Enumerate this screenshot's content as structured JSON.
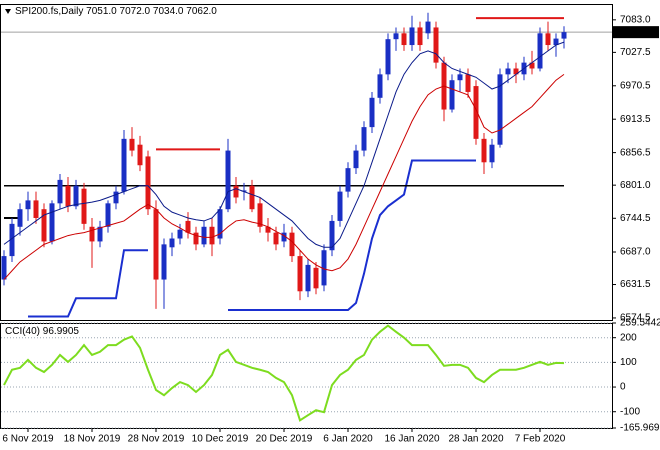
{
  "chart_data": {
    "type": "candlestick",
    "title": "SPI200.fs,Daily",
    "last_ohlc": [
      {
        "value": 7051,
        "label": "7051.0"
      },
      {
        "value": 7072,
        "label": "7072.0"
      },
      {
        "value": 7034,
        "label": "7034.0"
      },
      {
        "value": 7062,
        "label": "7062.0"
      }
    ],
    "categories": [
      null,
      null,
      null,
      "6 Nov 2019",
      null,
      null,
      null,
      null,
      null,
      null,
      null,
      "18 Nov 2019",
      null,
      null,
      null,
      null,
      null,
      null,
      null,
      "28 Nov 2019",
      null,
      null,
      null,
      null,
      null,
      null,
      null,
      "10 Dec 2019",
      null,
      null,
      null,
      null,
      null,
      null,
      null,
      "20 Dec 2019",
      null,
      null,
      null,
      null,
      null,
      null,
      null,
      "6 Jan 2020",
      null,
      null,
      null,
      null,
      null,
      null,
      null,
      "16 Jan 2020",
      null,
      null,
      null,
      null,
      null,
      null,
      null,
      "28 Jan 2020",
      null,
      null,
      null,
      null,
      null,
      null,
      null,
      "7 Feb 2020",
      null,
      null,
      null
    ],
    "open": [
      6640,
      6680,
      6730,
      6760,
      6775,
      6760,
      6705,
      6770,
      6800,
      6765,
      6795,
      6730,
      6705,
      6730,
      6770,
      6790,
      6880,
      6870,
      6850,
      6760,
      6640,
      6695,
      6710,
      6740,
      6720,
      6700,
      6730,
      6710,
      6760,
      6800,
      6790,
      6800,
      6770,
      6730,
      6720,
      6705,
      6720,
      6680,
      6620,
      6660,
      6630,
      6690,
      6740,
      6790,
      6830,
      6860,
      6900,
      6950,
      6990,
      7050,
      7060,
      7040,
      7070,
      7060,
      7070,
      7010,
      6930,
      6980,
      6990,
      6970,
      6880,
      6840,
      6870,
      6990,
      7000,
      6990,
      7010,
      7000,
      7060,
      7040,
      7051
    ],
    "high": [
      6690,
      6745,
      6770,
      6790,
      6790,
      6770,
      6775,
      6820,
      6815,
      6810,
      6805,
      6745,
      6740,
      6775,
      6800,
      6895,
      6900,
      6885,
      6860,
      6775,
      6710,
      6720,
      6735,
      6755,
      6730,
      6740,
      6745,
      6765,
      6880,
      6815,
      6805,
      6810,
      6780,
      6745,
      6730,
      6735,
      6730,
      6690,
      6675,
      6670,
      6700,
      6750,
      6800,
      6840,
      6870,
      6910,
      6960,
      7000,
      7060,
      7070,
      7070,
      7090,
      7080,
      7095,
      7080,
      7020,
      6990,
      7000,
      7000,
      6980,
      6890,
      6880,
      7000,
      7010,
      7010,
      7020,
      7030,
      7070,
      7080,
      7060,
      7072
    ],
    "low": [
      6630,
      6670,
      6715,
      6740,
      6735,
      6695,
      6700,
      6760,
      6755,
      6760,
      6725,
      6660,
      6695,
      6720,
      6760,
      6785,
      6850,
      6825,
      6750,
      6590,
      6590,
      6680,
      6700,
      6710,
      6690,
      6695,
      6680,
      6700,
      6755,
      6770,
      6775,
      6755,
      6720,
      6705,
      6690,
      6695,
      6670,
      6605,
      6610,
      6615,
      6620,
      6680,
      6730,
      6780,
      6820,
      6850,
      6890,
      6940,
      6980,
      7030,
      7030,
      7030,
      7030,
      7050,
      7000,
      6910,
      6925,
      6960,
      6950,
      6870,
      6820,
      6830,
      6865,
      6975,
      6975,
      6980,
      6990,
      6995,
      7030,
      7020,
      7034
    ],
    "close": [
      6680,
      6735,
      6760,
      6775,
      6745,
      6705,
      6770,
      6810,
      6765,
      6800,
      6735,
      6705,
      6730,
      6770,
      6790,
      6880,
      6860,
      6835,
      6760,
      6640,
      6700,
      6710,
      6725,
      6720,
      6700,
      6730,
      6700,
      6760,
      6860,
      6780,
      6792,
      6760,
      6730,
      6720,
      6700,
      6720,
      6680,
      6620,
      6665,
      6625,
      6690,
      6740,
      6790,
      6830,
      6860,
      6900,
      6950,
      6990,
      7050,
      7060,
      7040,
      7070,
      7040,
      7080,
      7010,
      6930,
      6980,
      6990,
      6960,
      6880,
      6840,
      6870,
      6990,
      7000,
      6990,
      7010,
      7000,
      7060,
      7040,
      7051,
      7062
    ],
    "up_color": "#1a2fc4",
    "down_color": "#e01818",
    "series": [
      {
        "color": "#0a1a8a",
        "width": 1,
        "values": [
          6700,
          6710,
          6720,
          6730,
          6740,
          6750,
          6755,
          6760,
          6765,
          6768,
          6770,
          6772,
          6775,
          6780,
          6785,
          6790,
          6795,
          6800,
          6800,
          6785,
          6765,
          6755,
          6750,
          6745,
          6742,
          6740,
          6745,
          6760,
          6790,
          6795,
          6790,
          6785,
          6780,
          6770,
          6760,
          6750,
          6740,
          6725,
          6710,
          6700,
          6695,
          6695,
          6710,
          6740,
          6770,
          6800,
          6840,
          6880,
          6920,
          6960,
          6990,
          7010,
          7025,
          7030,
          7025,
          7010,
          7000,
          6995,
          6990,
          6985,
          6975,
          6965,
          6970,
          6980,
          6990,
          7000,
          7010,
          7020,
          7030,
          7040,
          7045
        ]
      },
      {
        "color": "#cc0000",
        "width": 1,
        "values": [
          6640,
          6655,
          6670,
          6680,
          6690,
          6700,
          6705,
          6710,
          6715,
          6718,
          6720,
          6724,
          6728,
          6732,
          6736,
          6740,
          6750,
          6760,
          6768,
          6760,
          6745,
          6735,
          6728,
          6720,
          6715,
          6712,
          6712,
          6718,
          6730,
          6740,
          6742,
          6738,
          6735,
          6730,
          6722,
          6715,
          6705,
          6690,
          6675,
          6665,
          6658,
          6655,
          6660,
          6675,
          6700,
          6730,
          6760,
          6790,
          6820,
          6850,
          6880,
          6910,
          6935,
          6955,
          6965,
          6970,
          6965,
          6960,
          6955,
          6930,
          6900,
          6890,
          6895,
          6905,
          6915,
          6925,
          6935,
          6950,
          6965,
          6980,
          6990
        ]
      },
      {
        "color": "#1a2fd0",
        "width": 2,
        "values": [
          null,
          null,
          null,
          6577,
          6577,
          6577,
          6577,
          6577,
          6577,
          6608,
          6608,
          6608,
          6608,
          6608,
          6608,
          6690,
          6690,
          6690,
          6690,
          null,
          null,
          null,
          null,
          null,
          null,
          null,
          null,
          null,
          6588,
          6588,
          6588,
          6588,
          6588,
          6588,
          6588,
          6588,
          6588,
          6588,
          6588,
          6588,
          6588,
          6588,
          6588,
          6588,
          6600,
          6650,
          6710,
          6750,
          6765,
          6775,
          6785,
          6843,
          6843,
          6843,
          6843,
          6843,
          6843,
          6843,
          6843,
          6843,
          null,
          null,
          null,
          null,
          null,
          null,
          null,
          null,
          null,
          null,
          null
        ]
      },
      {
        "color": "#e01818",
        "width": 2,
        "values": [
          null,
          null,
          null,
          null,
          null,
          null,
          null,
          null,
          null,
          null,
          null,
          null,
          null,
          null,
          null,
          null,
          null,
          null,
          null,
          6862,
          6862,
          6862,
          6862,
          6862,
          6862,
          6862,
          6862,
          6862,
          null,
          null,
          null,
          null,
          null,
          null,
          null,
          null,
          null,
          null,
          null,
          null,
          null,
          null,
          null,
          null,
          null,
          null,
          null,
          null,
          null,
          null,
          null,
          null,
          null,
          null,
          null,
          null,
          null,
          null,
          null,
          null,
          null,
          null,
          null,
          null,
          null,
          null,
          null,
          null,
          null,
          null,
          null
        ]
      },
      {
        "color": "#e01818",
        "width": 2,
        "values": [
          null,
          null,
          null,
          null,
          null,
          null,
          null,
          null,
          null,
          null,
          null,
          null,
          null,
          null,
          null,
          null,
          null,
          null,
          null,
          null,
          null,
          null,
          null,
          null,
          null,
          null,
          null,
          null,
          null,
          null,
          null,
          null,
          null,
          null,
          null,
          null,
          null,
          null,
          null,
          null,
          null,
          null,
          null,
          null,
          null,
          null,
          null,
          null,
          null,
          null,
          null,
          null,
          null,
          null,
          null,
          null,
          null,
          null,
          null,
          7086,
          7086,
          7086,
          7086,
          7086,
          7086,
          7086,
          7086,
          7086,
          7086,
          7086,
          7086
        ]
      },
      {
        "color": "#000000",
        "width": 1.5,
        "values": [
          6800,
          6800,
          6800,
          6800,
          6800,
          6800,
          6800,
          6800,
          6800,
          6800,
          6800,
          6800,
          6800,
          6800,
          6800,
          6800,
          6800,
          6800,
          6800,
          6800,
          6800,
          6800,
          6800,
          6800,
          6800,
          6800,
          6800,
          6800,
          6800,
          6800,
          6800,
          6800,
          6800,
          6800,
          6800,
          6800,
          6800,
          6800,
          6800,
          6800,
          6800,
          6800,
          6800,
          6800,
          6800,
          6800,
          6800,
          6800,
          6800,
          6800,
          6800,
          6800,
          6800,
          6800,
          6800,
          6800,
          6800,
          6800,
          6800,
          6800,
          6800,
          6800,
          6800,
          6800,
          6800,
          6800,
          6800,
          6800,
          6800,
          6800,
          6800
        ]
      },
      {
        "color": "#000000",
        "width": 2,
        "values": [
          6745,
          6745,
          6745,
          null,
          null,
          null,
          null,
          null,
          null,
          null,
          null,
          null,
          null,
          null,
          null,
          null,
          null,
          null,
          null,
          null,
          null,
          null,
          null,
          null,
          null,
          null,
          null,
          null,
          null,
          null,
          null,
          null,
          null,
          null,
          null,
          null,
          null,
          null,
          null,
          null,
          null,
          null,
          null,
          null,
          null,
          null,
          null,
          null,
          null,
          null,
          null,
          null,
          null,
          null,
          null,
          null,
          null,
          null,
          null,
          null,
          null,
          null,
          null,
          null,
          null,
          null,
          null,
          null,
          null,
          null,
          null
        ]
      },
      {
        "name": "CCI(40)",
        "axis": "y2",
        "color": "#7ddc1f",
        "width": 2,
        "values": [
          8,
          70,
          78,
          110,
          78,
          61,
          90,
          130,
          102,
          130,
          170,
          130,
          143,
          170,
          170,
          192,
          205,
          159,
          70,
          -12,
          -33,
          -4,
          20,
          8,
          -20,
          8,
          49,
          130,
          151,
          102,
          90,
          78,
          70,
          61,
          37,
          20,
          -33,
          -135,
          -114,
          -94,
          -102,
          8,
          49,
          70,
          110,
          130,
          192,
          224,
          249,
          224,
          200,
          170,
          170,
          170,
          130,
          86,
          90,
          90,
          78,
          37,
          20,
          49,
          70,
          70,
          70,
          78,
          90,
          102,
          90,
          98,
          96.9905
        ]
      }
    ],
    "price_marker": {
      "value": 7062,
      "label": "7062.0"
    },
    "ylim": [
      6571,
      7110
    ],
    "yticks": [
      {
        "value": 7083,
        "label": "7083.0"
      },
      7027.5,
      6970.5,
      6913.5,
      6856.5,
      {
        "value": 6801,
        "label": "6801.0"
      },
      6744.5,
      {
        "value": 6687,
        "label": "6687.0"
      },
      6631.5,
      6574.5
    ],
    "y2lim": [
      -165.969,
      259.5442
    ],
    "y2ticks": [
      259.5442,
      200,
      100,
      0,
      -100,
      -165.969
    ]
  }
}
